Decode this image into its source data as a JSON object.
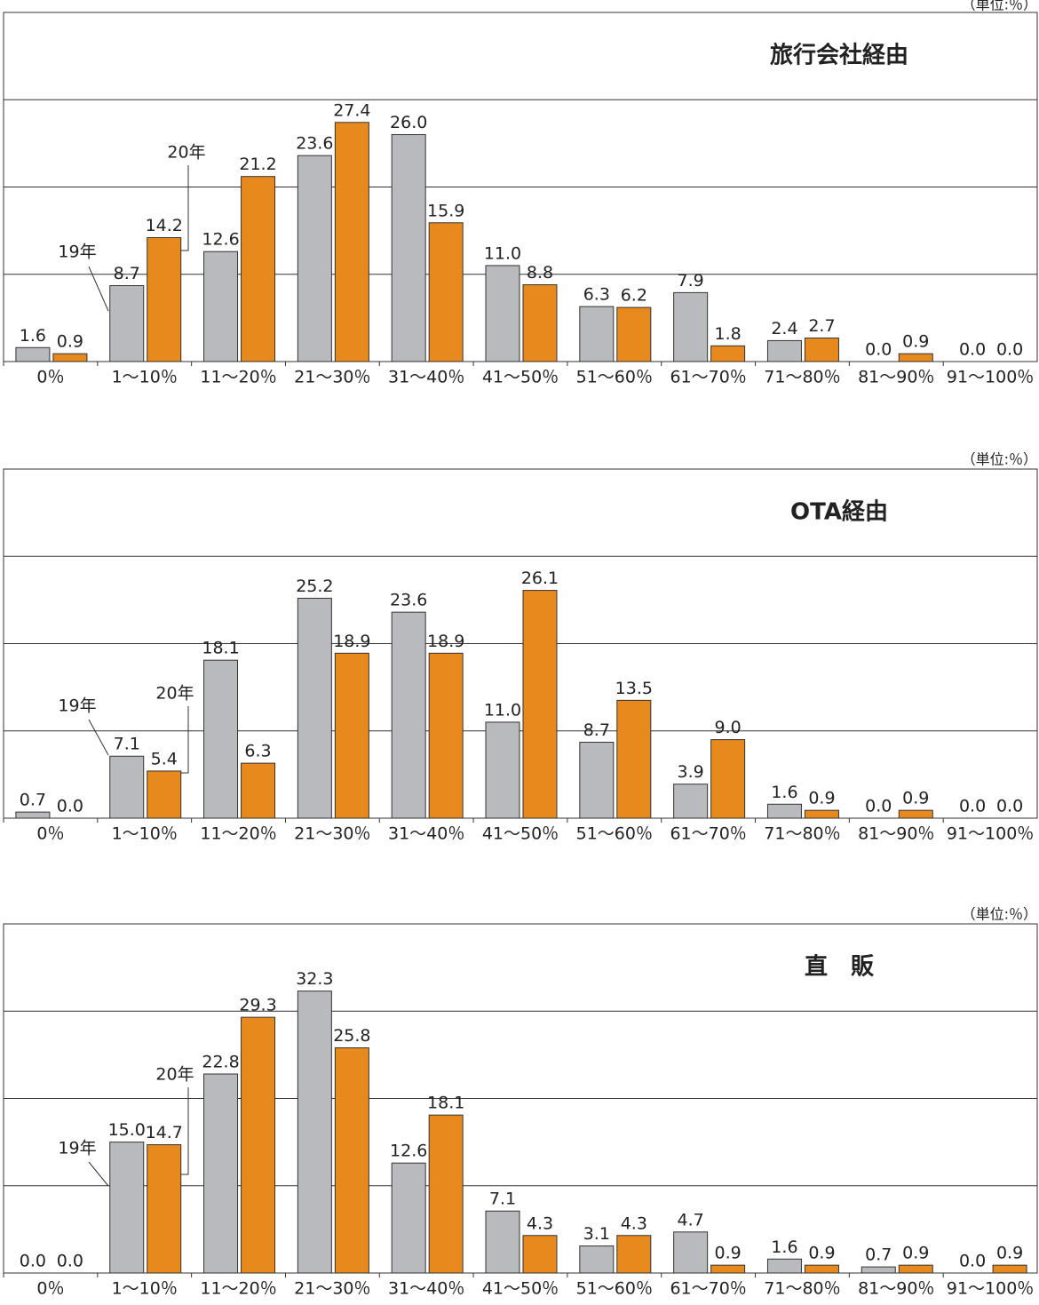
{
  "chart_data": [
    {
      "type": "bar",
      "title": "旅行会社経由",
      "unit": "（単位:％）",
      "categories": [
        "0％",
        "1～10％",
        "11～20％",
        "21～30％",
        "31～40％",
        "41～50％",
        "51～60％",
        "61～70％",
        "71～80％",
        "81～90％",
        "91～100％"
      ],
      "series": [
        {
          "name": "19年",
          "color": "#b9babe",
          "values": [
            1.6,
            8.7,
            12.6,
            23.6,
            26.0,
            11.0,
            6.3,
            7.9,
            2.4,
            0.0,
            0.0
          ],
          "value_labels": [
            "1.6",
            "8.7",
            "12.6",
            "23.6",
            "26.0",
            "11.0",
            "6.3",
            "7.9",
            "2.4",
            "0.0",
            "0.0"
          ]
        },
        {
          "name": "20年",
          "color": "#e8891e",
          "values": [
            0.9,
            14.2,
            21.2,
            27.4,
            15.9,
            8.8,
            6.2,
            1.8,
            2.7,
            0.9,
            0.0
          ],
          "value_labels": [
            "0.9",
            "14.2",
            "21.2",
            "27.4",
            "15.9",
            "8.8",
            "6.2",
            "1.8",
            "2.7",
            "0.9",
            "0.0"
          ]
        }
      ],
      "ylim": [
        0,
        40
      ],
      "yticks": [
        0,
        10,
        20,
        30,
        40
      ],
      "grid": true
    },
    {
      "type": "bar",
      "title": "OTA経由",
      "unit": "（単位:％）",
      "categories": [
        "0％",
        "1～10％",
        "11～20％",
        "21～30％",
        "31～40％",
        "41～50％",
        "51～60％",
        "61～70％",
        "71～80％",
        "81～90％",
        "91～100％"
      ],
      "series": [
        {
          "name": "19年",
          "color": "#b9babe",
          "values": [
            0.7,
            7.1,
            18.1,
            25.2,
            23.6,
            11.0,
            8.7,
            3.9,
            1.6,
            0.0,
            0.0
          ],
          "value_labels": [
            "0.7",
            "7.1",
            "18.1",
            "25.2",
            "23.6",
            "11.0",
            "8.7",
            "3.9",
            "1.6",
            "0.0",
            "0.0"
          ]
        },
        {
          "name": "20年",
          "color": "#e8891e",
          "values": [
            0.0,
            5.4,
            6.3,
            18.9,
            18.9,
            26.1,
            13.5,
            9.0,
            0.9,
            0.9,
            0.0
          ],
          "value_labels": [
            "0.0",
            "5.4",
            "6.3",
            "18.9",
            "18.9",
            "26.1",
            "13.5",
            "9.0",
            "0.9",
            "0.9",
            "0.0"
          ]
        }
      ],
      "ylim": [
        0,
        40
      ],
      "yticks": [
        0,
        10,
        20,
        30,
        40
      ],
      "grid": true
    },
    {
      "type": "bar",
      "title": "直　販",
      "unit": "（単位:％）",
      "categories": [
        "0％",
        "1～10％",
        "11～20％",
        "21～30％",
        "31～40％",
        "41～50％",
        "51～60％",
        "61～70％",
        "71～80％",
        "81～90％",
        "91～100％"
      ],
      "series": [
        {
          "name": "19年",
          "color": "#b9babe",
          "values": [
            0.0,
            15.0,
            22.8,
            32.3,
            12.6,
            7.1,
            3.1,
            4.7,
            1.6,
            0.7,
            0.0
          ],
          "value_labels": [
            "0.0",
            "15.0",
            "22.8",
            "32.3",
            "12.6",
            "7.1",
            "3.1",
            "4.7",
            "1.6",
            "0.7",
            "0.0"
          ]
        },
        {
          "name": "20年",
          "color": "#e8891e",
          "values": [
            0.0,
            14.7,
            29.3,
            25.8,
            18.1,
            4.3,
            4.3,
            0.9,
            0.9,
            0.9,
            0.9
          ],
          "value_labels": [
            "0.0",
            "14.7",
            "29.3",
            "25.8",
            "18.1",
            "4.3",
            "4.3",
            "0.9",
            "0.9",
            "0.9",
            "0.9"
          ]
        }
      ],
      "ylim": [
        0,
        40
      ],
      "yticks": [
        0,
        10,
        20,
        30,
        40
      ],
      "grid": true
    }
  ]
}
